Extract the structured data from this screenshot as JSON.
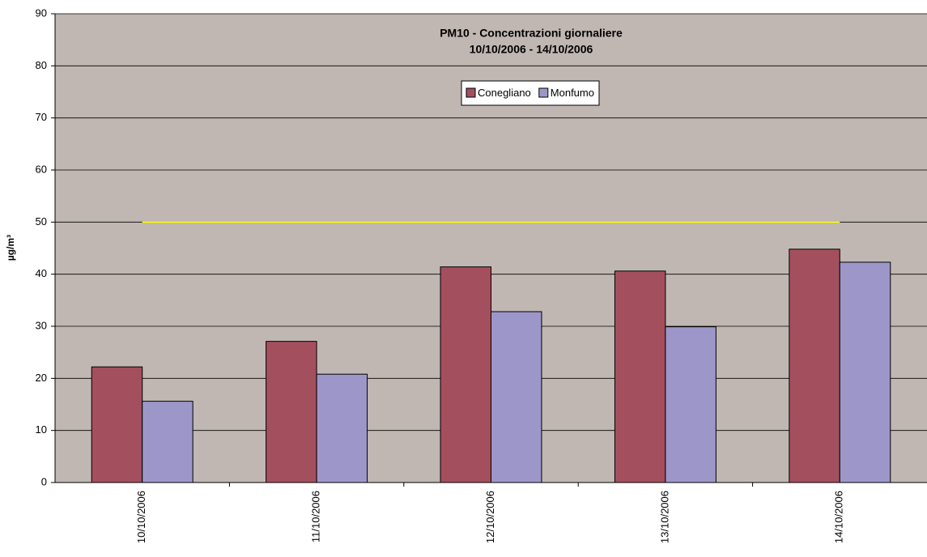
{
  "chart_data": {
    "type": "bar",
    "title": "PM10 - Concentrazioni giornaliere",
    "subtitle": "10/10/2006 - 14/10/2006",
    "y_label": "µg/m³",
    "categories": [
      "10/10/2006",
      "11/10/2006",
      "12/10/2006",
      "13/10/2006",
      "14/10/2006"
    ],
    "series": [
      {
        "name": "Conegliano",
        "color": "#a44f5e",
        "values": [
          22.2,
          27.1,
          41.4,
          40.6,
          44.8
        ]
      },
      {
        "name": "Monfumo",
        "color": "#9d97c9",
        "values": [
          15.6,
          20.8,
          32.8,
          29.9,
          42.3
        ]
      }
    ],
    "limit_line": {
      "value": 50,
      "color": "#ffff00"
    },
    "ylim": [
      0,
      90
    ],
    "yticks": [
      0,
      10,
      20,
      30,
      40,
      50,
      60,
      70,
      80,
      90
    ],
    "grid": true,
    "legend": "top"
  }
}
